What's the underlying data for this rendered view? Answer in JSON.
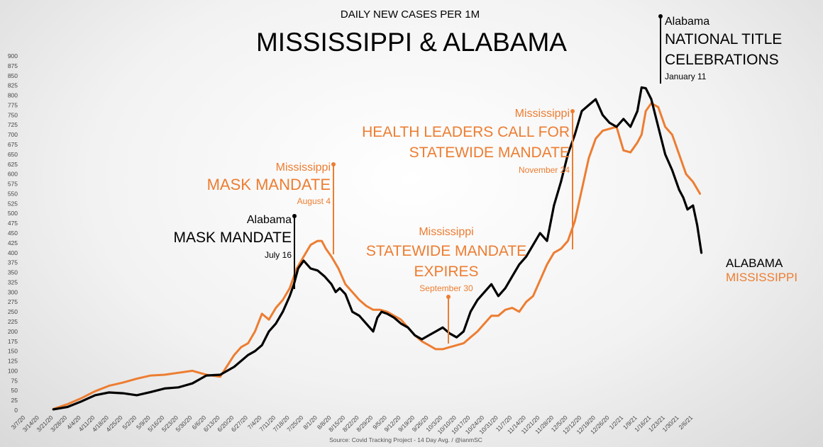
{
  "chart_data": {
    "type": "line",
    "subtitle": "DAILY NEW CASES PER 1M",
    "title": "MISSISSIPPI & ALABAMA",
    "source": "Source: Covid Tracking Project - 14 Day Avg. / @ianmSC",
    "ylim": [
      0,
      900
    ],
    "y_ticks": [
      0,
      25,
      50,
      75,
      100,
      125,
      150,
      175,
      200,
      225,
      250,
      275,
      300,
      325,
      350,
      375,
      400,
      425,
      450,
      475,
      500,
      525,
      550,
      575,
      600,
      625,
      650,
      675,
      700,
      725,
      750,
      775,
      800,
      825,
      850,
      875,
      900
    ],
    "x_ticks": [
      "3/7/20",
      "3/14/20",
      "3/21/20",
      "3/28/20",
      "4/4/20",
      "4/11/20",
      "4/18/20",
      "4/25/20",
      "5/2/20",
      "5/9/20",
      "5/16/20",
      "5/23/20",
      "5/30/20",
      "6/6/20",
      "6/13/20",
      "6/20/20",
      "6/27/20",
      "7/4/20",
      "7/11/20",
      "7/18/20",
      "7/25/20",
      "8/1/20",
      "8/8/20",
      "8/15/20",
      "8/22/20",
      "8/29/20",
      "9/5/20",
      "9/12/20",
      "9/19/20",
      "9/26/20",
      "10/3/20",
      "10/10/20",
      "10/17/20",
      "10/24/20",
      "10/31/20",
      "11/7/20",
      "11/14/20",
      "11/21/20",
      "11/28/20",
      "12/5/20",
      "12/12/20",
      "12/19/20",
      "12/26/20",
      "1/2/21",
      "1/9/21",
      "1/16/21",
      "1/23/21",
      "1/30/21",
      "2/6/21"
    ],
    "grid": false,
    "series": [
      {
        "name": "ALABAMA",
        "color": "#000000",
        "x": [
          2,
          3,
          4,
          5,
          6,
          7,
          8,
          9,
          10,
          11,
          12,
          13,
          14,
          15,
          16,
          16.5,
          17,
          17.5,
          18,
          18.5,
          19,
          19.3,
          19.6,
          20,
          20.5,
          21,
          21.5,
          22,
          22.3,
          22.6,
          23,
          23.5,
          24,
          24.5,
          25,
          25.3,
          25.6,
          26,
          26.5,
          27,
          27.5,
          28,
          28.5,
          29,
          29.5,
          30,
          30.5,
          31,
          31.5,
          32,
          32.5,
          33,
          33.5,
          34,
          34.5,
          35,
          35.5,
          36,
          36.5,
          37,
          37.5,
          38,
          38.5,
          39,
          39.5,
          40,
          40.5,
          41,
          41.5,
          42,
          42.5,
          43,
          43.5,
          44,
          44.3,
          44.6,
          45,
          45.5,
          46,
          46.5,
          47,
          47.3,
          47.6,
          48,
          48.3,
          48.6
        ],
        "values": [
          2,
          8,
          22,
          38,
          45,
          43,
          38,
          46,
          55,
          58,
          68,
          88,
          90,
          110,
          140,
          150,
          165,
          200,
          220,
          250,
          290,
          320,
          360,
          380,
          360,
          355,
          340,
          320,
          300,
          310,
          295,
          250,
          240,
          220,
          200,
          235,
          250,
          245,
          235,
          220,
          210,
          190,
          180,
          190,
          200,
          210,
          195,
          185,
          200,
          250,
          280,
          300,
          320,
          290,
          310,
          340,
          370,
          390,
          420,
          450,
          430,
          520,
          580,
          650,
          700,
          760,
          775,
          790,
          750,
          730,
          720,
          740,
          720,
          760,
          820,
          818,
          790,
          720,
          650,
          610,
          560,
          540,
          510,
          520,
          470,
          400
        ]
      },
      {
        "name": "MISSISSIPPI",
        "color": "#ED7D31",
        "x": [
          2,
          3,
          4,
          5,
          6,
          7,
          8,
          9,
          10,
          11,
          12,
          13,
          14,
          15,
          15.5,
          16,
          16.5,
          17,
          17.5,
          18,
          18.5,
          19,
          19.5,
          20,
          20.5,
          21,
          21.3,
          21.6,
          22,
          22.5,
          23,
          23.5,
          24,
          24.5,
          25,
          25.5,
          26,
          26.5,
          27,
          27.5,
          28,
          28.5,
          29,
          29.5,
          30,
          30.5,
          31,
          31.5,
          32,
          32.5,
          33,
          33.5,
          34,
          34.5,
          35,
          35.5,
          36,
          36.5,
          37,
          37.5,
          38,
          38.5,
          39,
          39.5,
          40,
          40.5,
          41,
          41.5,
          42,
          42.5,
          43,
          43.5,
          44,
          44.3,
          44.6,
          45,
          45.5,
          46,
          46.5,
          47,
          47.5,
          48,
          48.5
        ],
        "values": [
          3,
          15,
          30,
          48,
          62,
          70,
          80,
          88,
          90,
          95,
          100,
          90,
          85,
          140,
          160,
          170,
          200,
          245,
          230,
          260,
          280,
          310,
          360,
          390,
          420,
          430,
          430,
          410,
          390,
          360,
          320,
          300,
          280,
          265,
          255,
          255,
          250,
          240,
          230,
          210,
          190,
          175,
          165,
          155,
          155,
          160,
          165,
          170,
          185,
          200,
          220,
          240,
          240,
          255,
          260,
          250,
          275,
          290,
          330,
          370,
          400,
          410,
          430,
          480,
          560,
          640,
          690,
          710,
          715,
          720,
          660,
          655,
          680,
          700,
          760,
          780,
          770,
          720,
          700,
          650,
          600,
          580,
          550
        ]
      }
    ],
    "annotations": [
      {
        "state": "Alabama",
        "event": "MASK MANDATE",
        "date": "July 16"
      },
      {
        "state": "Mississippi",
        "event": "MASK MANDATE",
        "date": "August 4"
      },
      {
        "state": "Mississippi",
        "event_lines": [
          "STATEWIDE MANDATE",
          "EXPIRES"
        ],
        "date": "September 30"
      },
      {
        "state": "Mississippi",
        "event_lines": [
          "HEALTH LEADERS CALL FOR",
          "STATEWIDE MANDATE"
        ],
        "date": "November 24"
      },
      {
        "state": "Alabama",
        "event_lines": [
          "NATIONAL TITLE",
          "CELEBRATIONS"
        ],
        "date": "January 11"
      }
    ],
    "end_labels": [
      "ALABAMA",
      "MISSISSIPPI"
    ]
  }
}
